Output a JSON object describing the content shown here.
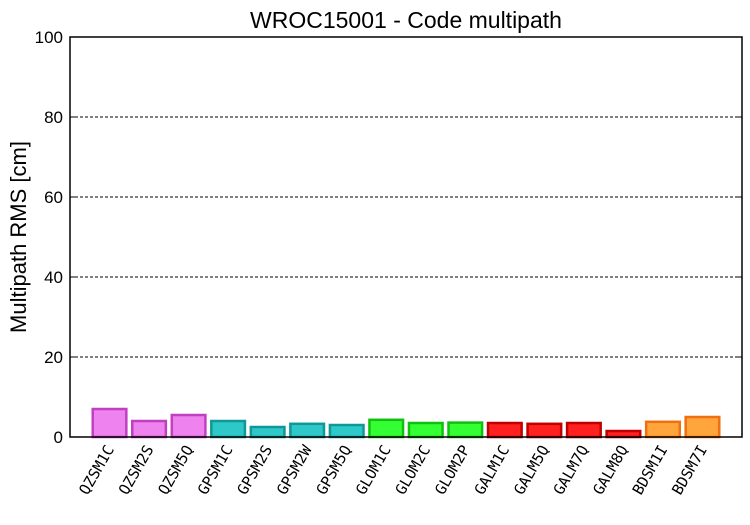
{
  "chart_data": {
    "type": "bar",
    "title": "WROC15001 - Code multipath",
    "xlabel": "",
    "ylabel": "Multipath RMS [cm]",
    "ylim": [
      0,
      100
    ],
    "yticks": [
      0,
      20,
      40,
      60,
      80,
      100
    ],
    "grid": "horizontal dashed",
    "categories": [
      "QZSM1C",
      "QZSM2S",
      "QZSM5Q",
      "GPSM1C",
      "GPSM2S",
      "GPSM2W",
      "GPSM5Q",
      "GLOM1C",
      "GLOM2C",
      "GLOM2P",
      "GALM1C",
      "GALM5Q",
      "GALM7Q",
      "GALM8Q",
      "BDSM1I",
      "BDSM7I"
    ],
    "values": [
      7.0,
      4.0,
      5.5,
      4.0,
      2.5,
      3.3,
      3.0,
      4.3,
      3.5,
      3.6,
      3.5,
      3.3,
      3.5,
      1.5,
      3.8,
      5.0
    ],
    "colors": {
      "QZS": {
        "fill": "#ee82ee",
        "stroke": "#c040c0"
      },
      "GPS": {
        "fill": "#2ec8c8",
        "stroke": "#109898"
      },
      "GLO": {
        "fill": "#33ff33",
        "stroke": "#10c010"
      },
      "GAL": {
        "fill": "#ff2020",
        "stroke": "#c00000"
      },
      "BDS": {
        "fill": "#ffa53c",
        "stroke": "#f07010"
      }
    }
  }
}
